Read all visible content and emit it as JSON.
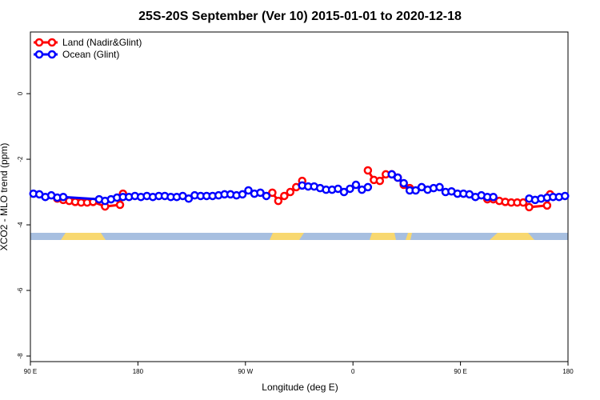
{
  "chart_data": {
    "type": "line",
    "title": "25S-20S September (Ver 10)   2015-01-01 to 2020-12-18",
    "x_label": "Longitude (deg E)",
    "y_label": "XCO2 - MLO trend (ppm)",
    "xlim": [
      90,
      540
    ],
    "ylim": [
      -8.17,
      1.88
    ],
    "xticks": [
      {
        "value": 90,
        "label": "90 E"
      },
      180,
      {
        "value": 270,
        "label": "90 W"
      },
      {
        "value": 360,
        "label": "0"
      },
      {
        "value": 450,
        "label": "90 E"
      },
      {
        "value": 540,
        "label": "180"
      }
    ],
    "yticks": [
      0,
      -2,
      -4,
      -6,
      -8
    ],
    "legend": "top-left",
    "series": [
      {
        "name": "Land (Nadir&Glint)",
        "color": "#ff0000",
        "x": [
          112.5,
          117.5,
          122.5,
          127.5,
          132.5,
          137.5,
          142.5,
          152.5,
          165,
          167.5,
          null,
          292.5,
          297.5,
          302.5,
          307.5,
          312.5,
          317.5,
          null,
          372.5,
          377.5,
          382.5,
          387.5,
          392.5,
          397.5,
          402.5,
          407.5,
          null,
          472.5,
          477.5,
          482.5,
          487.5,
          492.5,
          497.5,
          502.5,
          507.5,
          522.5,
          525
        ],
        "values": [
          -3.2,
          -3.24,
          -3.27,
          -3.3,
          -3.32,
          -3.32,
          -3.3,
          -3.44,
          -3.39,
          -3.05,
          null,
          -3.02,
          -3.27,
          -3.12,
          -3.0,
          -2.85,
          -2.66,
          null,
          -2.34,
          -2.63,
          -2.66,
          -2.46,
          -2.46,
          -2.56,
          -2.78,
          -2.88,
          null,
          -3.22,
          -3.22,
          -3.27,
          -3.3,
          -3.32,
          -3.32,
          -3.32,
          -3.46,
          -3.41,
          -3.07
        ]
      },
      {
        "name": "Ocean (Glint)",
        "color": "#0000ff",
        "x": [
          92.5,
          97.5,
          102.5,
          107.5,
          112.5,
          117.5,
          147.5,
          152.5,
          157.5,
          162.5,
          167.5,
          172.5,
          177.5,
          182.5,
          187.5,
          192.5,
          197.5,
          202.5,
          207.5,
          212.5,
          217.5,
          222.5,
          227.5,
          232.5,
          237.5,
          242.5,
          247.5,
          252.5,
          257.5,
          262.5,
          267.5,
          272.5,
          277.5,
          282.5,
          287.5,
          null,
          317.5,
          322.5,
          327.5,
          332.5,
          337.5,
          342.5,
          347.5,
          352.5,
          357.5,
          362.5,
          367.5,
          372.5,
          null,
          392.5,
          397.5,
          402.5,
          407.5,
          412.5,
          417.5,
          422.5,
          427.5,
          432.5,
          437.5,
          442.5,
          447.5,
          452.5,
          457.5,
          462.5,
          467.5,
          472.5,
          477.5,
          null,
          507.5,
          512.5,
          517.5,
          522.5,
          527.5,
          532.5,
          537.5
        ],
        "values": [
          -3.05,
          -3.07,
          -3.15,
          -3.1,
          -3.17,
          -3.15,
          -3.22,
          -3.27,
          -3.22,
          -3.17,
          -3.15,
          -3.15,
          -3.12,
          -3.15,
          -3.12,
          -3.15,
          -3.12,
          -3.12,
          -3.15,
          -3.15,
          -3.12,
          -3.2,
          -3.1,
          -3.12,
          -3.12,
          -3.12,
          -3.1,
          -3.07,
          -3.07,
          -3.1,
          -3.07,
          -2.95,
          -3.05,
          -3.02,
          -3.12,
          null,
          -2.8,
          -2.83,
          -2.83,
          -2.88,
          -2.93,
          -2.93,
          -2.9,
          -3.0,
          -2.9,
          -2.78,
          -2.93,
          -2.85,
          null,
          -2.46,
          -2.56,
          -2.73,
          -2.95,
          -2.95,
          -2.85,
          -2.93,
          -2.88,
          -2.85,
          -3.0,
          -2.98,
          -3.05,
          -3.05,
          -3.07,
          -3.15,
          -3.1,
          -3.15,
          -3.15,
          null,
          -3.2,
          -3.24,
          -3.2,
          -3.17,
          -3.15,
          -3.15,
          -3.12
        ]
      }
    ]
  }
}
